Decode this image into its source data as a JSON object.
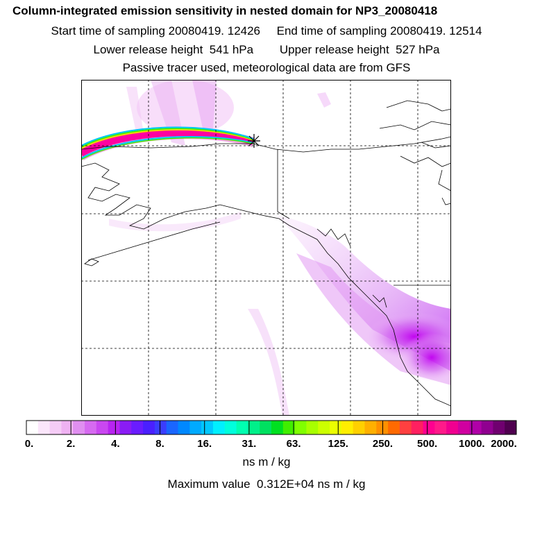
{
  "header": {
    "title": "Column-integrated emission sensitivity in nested domain for NP3_20080418",
    "line2": "Start time of sampling 20080419. 12426     End time of sampling 20080419. 12514",
    "line3": "Lower release height  541 hPa        Upper release height  527 hPa",
    "line4": "Passive tracer used, meteorological data are from GFS"
  },
  "colorbar": {
    "tick_labels": [
      "0.",
      "2.",
      "4.",
      "8.",
      "16.",
      "31.",
      "63.",
      "125.",
      "250.",
      "500.",
      "1000.",
      "2000."
    ],
    "unit": "ns m / kg",
    "colors": [
      "#ffffff",
      "#fbe6fb",
      "#f5ccf6",
      "#efb2f2",
      "#e08ff0",
      "#d66af0",
      "#c947f0",
      "#b824f0",
      "#8a1cf5",
      "#6a1cff",
      "#4a1fff",
      "#3a3dff",
      "#1a66ff",
      "#0088ff",
      "#00aaff",
      "#00c8ff",
      "#00f0ff",
      "#00ffdc",
      "#00ffb0",
      "#00f08a",
      "#00e060",
      "#00e020",
      "#40ee00",
      "#80ff00",
      "#a8ff00",
      "#ccff00",
      "#ecff00",
      "#ffee00",
      "#ffd000",
      "#ffb000",
      "#ff9000",
      "#ff6a00",
      "#ff4040",
      "#ff2060",
      "#ff0090",
      "#ff1a8a",
      "#f00090",
      "#d000a0",
      "#b000a8",
      "#900090",
      "#700070",
      "#500050"
    ]
  },
  "max_value": "Maximum value  0.312E+04 ns m / kg",
  "map": {
    "receptor_marker": "star-marker",
    "plume_colors": [
      "#ff00a0",
      "#ff2080",
      "#ffd000",
      "#40ee00",
      "#00c8ff",
      "#8a1cf5",
      "#d000a0"
    ]
  }
}
